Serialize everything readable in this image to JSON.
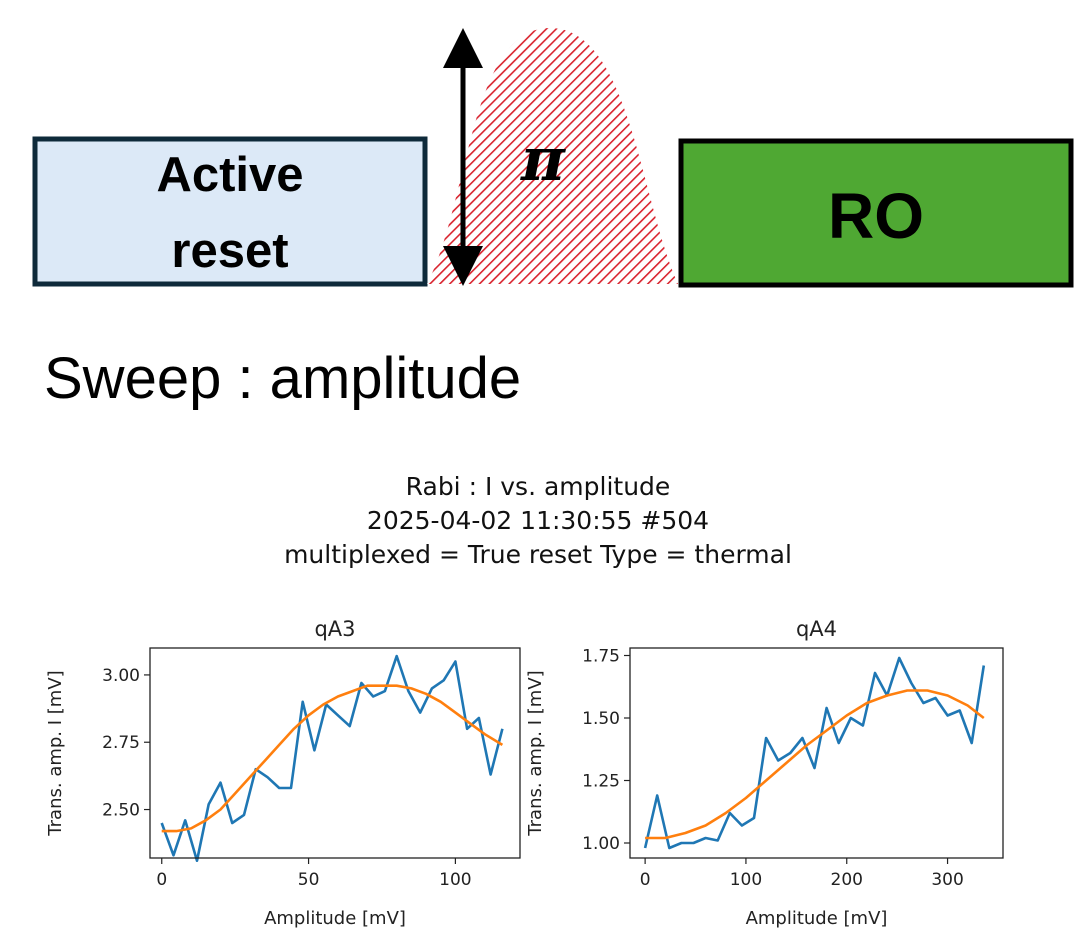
{
  "sequence": {
    "reset_label_line1": "Active",
    "reset_label_line2": "reset",
    "pulse_label": "π",
    "readout_label": "RO",
    "colors": {
      "reset_fill": "#dce9f7",
      "reset_border": "#0e2a3a",
      "pulse_hatch": "#d9232e",
      "readout_fill": "#4fa833"
    }
  },
  "sweep_label": "Sweep : amplitude",
  "figure": {
    "title_line1": "Rabi : I vs. amplitude",
    "title_line2": "2025-04-02 11:30:55 #504",
    "title_line3": "multiplexed = True reset Type = thermal"
  },
  "chart_data": [
    {
      "type": "line",
      "title": "qA3",
      "xlabel": "Amplitude [mV]",
      "ylabel": "Trans. amp. I [mV]",
      "xlim": [
        -4,
        122
      ],
      "ylim": [
        2.32,
        3.1
      ],
      "xticks": [
        0,
        50,
        100
      ],
      "yticks": [
        2.5,
        2.75,
        3.0
      ],
      "ytick_labels": [
        "2.50",
        "2.75",
        "3.00"
      ],
      "series": [
        {
          "color": "#1f77b4",
          "x": [
            0,
            4,
            8,
            12,
            16,
            20,
            24,
            28,
            32,
            36,
            40,
            44,
            48,
            52,
            56,
            60,
            64,
            68,
            72,
            76,
            80,
            84,
            88,
            92,
            96,
            100,
            104,
            108,
            112,
            116
          ],
          "values": [
            2.45,
            2.33,
            2.46,
            2.31,
            2.52,
            2.6,
            2.45,
            2.48,
            2.65,
            2.62,
            2.58,
            2.58,
            2.9,
            2.72,
            2.89,
            2.85,
            2.81,
            2.97,
            2.92,
            2.94,
            3.07,
            2.94,
            2.86,
            2.95,
            2.98,
            3.05,
            2.8,
            2.84,
            2.63,
            2.8
          ]
        },
        {
          "color": "#ff7f0e",
          "x": [
            0,
            5,
            10,
            15,
            20,
            25,
            30,
            35,
            40,
            45,
            50,
            55,
            60,
            65,
            70,
            75,
            80,
            85,
            90,
            95,
            100,
            105,
            110,
            116
          ],
          "values": [
            2.42,
            2.42,
            2.43,
            2.46,
            2.5,
            2.56,
            2.62,
            2.68,
            2.74,
            2.8,
            2.85,
            2.89,
            2.92,
            2.94,
            2.96,
            2.96,
            2.96,
            2.95,
            2.93,
            2.9,
            2.86,
            2.82,
            2.78,
            2.74
          ]
        }
      ]
    },
    {
      "type": "line",
      "title": "qA4",
      "xlabel": "Amplitude [mV]",
      "ylabel": "Trans. amp. I [mV]",
      "xlim": [
        -15,
        355
      ],
      "ylim": [
        0.94,
        1.78
      ],
      "xticks": [
        0,
        100,
        200,
        300
      ],
      "yticks": [
        1.0,
        1.25,
        1.5,
        1.75
      ],
      "ytick_labels": [
        "1.00",
        "1.25",
        "1.50",
        "1.75"
      ],
      "series": [
        {
          "color": "#1f77b4",
          "x": [
            0,
            12,
            24,
            36,
            48,
            60,
            72,
            84,
            96,
            108,
            120,
            132,
            144,
            156,
            168,
            180,
            192,
            204,
            216,
            228,
            240,
            252,
            264,
            276,
            288,
            300,
            312,
            324,
            336
          ],
          "values": [
            0.98,
            1.19,
            0.98,
            1.0,
            1.0,
            1.02,
            1.01,
            1.12,
            1.07,
            1.1,
            1.42,
            1.33,
            1.36,
            1.42,
            1.3,
            1.54,
            1.4,
            1.5,
            1.47,
            1.68,
            1.59,
            1.74,
            1.64,
            1.56,
            1.58,
            1.51,
            1.53,
            1.4,
            1.71
          ]
        },
        {
          "color": "#ff7f0e",
          "x": [
            0,
            20,
            40,
            60,
            80,
            100,
            120,
            140,
            160,
            180,
            200,
            220,
            240,
            260,
            280,
            300,
            320,
            336
          ],
          "values": [
            1.02,
            1.02,
            1.04,
            1.07,
            1.12,
            1.18,
            1.25,
            1.32,
            1.39,
            1.45,
            1.51,
            1.56,
            1.59,
            1.61,
            1.61,
            1.59,
            1.55,
            1.5
          ]
        }
      ]
    }
  ]
}
